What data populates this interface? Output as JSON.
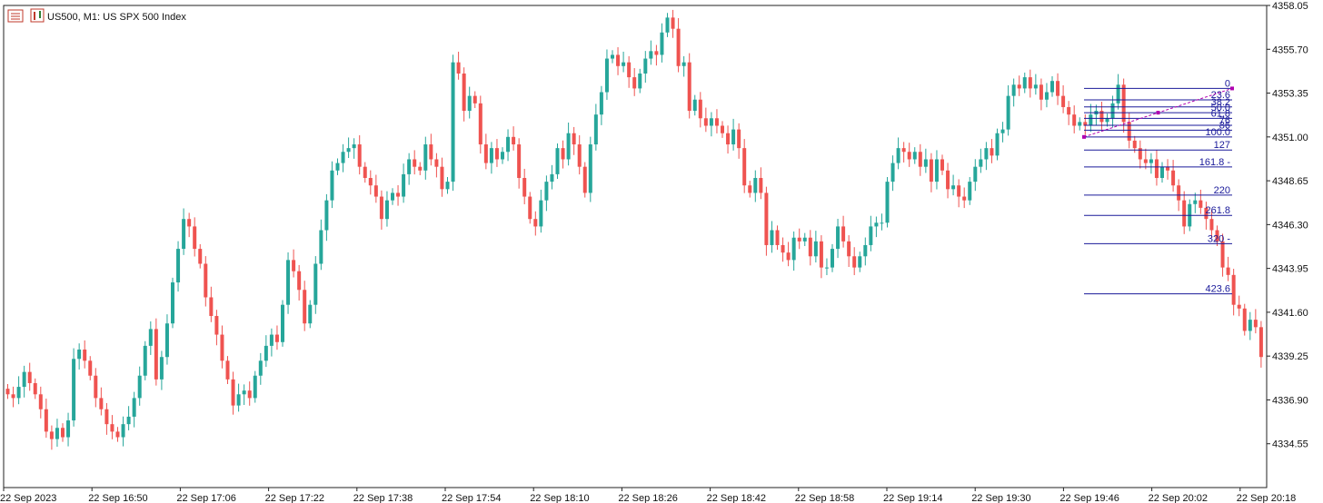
{
  "chart_data": {
    "type": "candlestick",
    "title": "US500, M1:  US SPX 500 Index",
    "symbol": "US500",
    "timeframe": "M1",
    "colors": {
      "bull": "#26a69a",
      "bear": "#ef5350",
      "fib": "#1a1a9a",
      "trendline": "#b000b0",
      "axis": "#222222"
    },
    "ylim": [
      4332.2,
      4358.05
    ],
    "y_ticks": [
      "4358.05",
      "4355.70",
      "4353.35",
      "4351.00",
      "4348.65",
      "4346.30",
      "4343.95",
      "4341.60",
      "4339.25",
      "4336.90",
      "4334.55"
    ],
    "x_ticks": [
      "22 Sep 2023",
      "22 Sep 16:50",
      "22 Sep 17:06",
      "22 Sep 17:22",
      "22 Sep 17:38",
      "22 Sep 17:54",
      "22 Sep 18:10",
      "22 Sep 18:26",
      "22 Sep 18:42",
      "22 Sep 18:58",
      "22 Sep 19:14",
      "22 Sep 19:30",
      "22 Sep 19:46",
      "22 Sep 20:02",
      "22 Sep 20:18"
    ],
    "closes": [
      4337.2,
      4337.0,
      4337.6,
      4338.4,
      4337.8,
      4337.2,
      4336.4,
      4335.2,
      4334.8,
      4335.4,
      4334.9,
      4335.8,
      4339.1,
      4339.6,
      4339.0,
      4338.2,
      4337.0,
      4336.4,
      4335.6,
      4335.2,
      4334.9,
      4335.6,
      4336.0,
      4337.0,
      4338.2,
      4339.8,
      4340.7,
      4338.0,
      4339.2,
      4341.0,
      4343.2,
      4345.0,
      4346.6,
      4346.2,
      4345.0,
      4344.2,
      4342.4,
      4341.4,
      4340.4,
      4339.0,
      4338.0,
      4336.6,
      4337.2,
      4337.4,
      4337.0,
      4338.2,
      4339.0,
      4339.8,
      4340.4,
      4340.0,
      4342.0,
      4344.4,
      4343.8,
      4342.8,
      4341.0,
      4342.0,
      4344.2,
      4346.0,
      4347.6,
      4349.2,
      4349.6,
      4350.2,
      4350.4,
      4350.6,
      4349.4,
      4348.8,
      4348.4,
      4347.8,
      4346.6,
      4347.6,
      4348.0,
      4347.8,
      4349.0,
      4349.8,
      4349.4,
      4349.2,
      4350.6,
      4349.8,
      4349.4,
      4348.2,
      4348.6,
      4355.0,
      4354.4,
      4352.4,
      4353.2,
      4352.8,
      4350.6,
      4349.6,
      4350.4,
      4349.8,
      4350.2,
      4351.0,
      4350.6,
      4348.8,
      4347.8,
      4346.6,
      4346.2,
      4347.6,
      4348.6,
      4349.0,
      4350.4,
      4349.8,
      4351.2,
      4350.6,
      4349.4,
      4348.0,
      4350.6,
      4352.2,
      4353.4,
      4355.2,
      4355.4,
      4354.8,
      4355.0,
      4354.2,
      4353.6,
      4354.4,
      4355.2,
      4355.6,
      4355.4,
      4356.6,
      4357.4,
      4356.8,
      4354.8,
      4355.0,
      4352.4,
      4353.0,
      4352.0,
      4351.6,
      4352.0,
      4351.6,
      4351.2,
      4350.6,
      4351.4,
      4350.4,
      4348.4,
      4348.0,
      4348.8,
      4348.0,
      4345.2,
      4346.0,
      4345.2,
      4344.8,
      4344.4,
      4345.6,
      4345.4,
      4345.6,
      4344.6,
      4345.4,
      4344.0,
      4344.0,
      4345.0,
      4346.2,
      4345.4,
      4344.6,
      4344.0,
      4344.6,
      4345.2,
      4346.2,
      4346.4,
      4346.4,
      4348.6,
      4349.6,
      4350.4,
      4350.2,
      4349.8,
      4350.2,
      4349.4,
      4349.8,
      4348.6,
      4349.8,
      4349.2,
      4348.2,
      4348.4,
      4347.8,
      4347.6,
      4348.6,
      4349.4,
      4349.8,
      4350.4,
      4350.0,
      4351.2,
      4351.4,
      4353.2,
      4353.8,
      4353.6,
      4354.2,
      4353.6,
      4353.8,
      4353.0,
      4353.4,
      4354.0,
      4353.2,
      4352.6,
      4352.2,
      4351.6,
      4351.8,
      4351.6,
      4352.2,
      4352.4,
      4351.8,
      4352.0,
      4352.8,
      4353.8,
      4351.8,
      4350.8,
      4350.4,
      4349.8,
      4349.6,
      4349.8,
      4348.8,
      4349.4,
      4349.2,
      4348.4,
      4347.6,
      4346.2,
      4347.4,
      4347.6,
      4347.2,
      4346.6,
      4346.0,
      4345.4,
      4344.0,
      4343.6,
      4342.0,
      4341.8,
      4340.6,
      4341.2,
      4340.8,
      4339.2
    ],
    "fibonacci": {
      "type": "fibonacci_retracement_expansion",
      "start_price": 4351.0,
      "end_price": 4353.6,
      "levels": [
        {
          "label": "0",
          "ratio": 0
        },
        {
          "label": "23.6",
          "ratio": 0.236
        },
        {
          "label": "38.2",
          "ratio": 0.382
        },
        {
          "label": "50.0",
          "ratio": 0.5
        },
        {
          "label": "61.8",
          "ratio": 0.618
        },
        {
          "label": "76",
          "ratio": 0.76
        },
        {
          "label": "86",
          "ratio": 0.86
        },
        {
          "label": "100.0",
          "ratio": 1.0
        },
        {
          "label": "127",
          "ratio": 1.27
        },
        {
          "label": "161.8 -",
          "ratio": 1.618
        },
        {
          "label": "220",
          "ratio": 2.2
        },
        {
          "label": "261.8",
          "ratio": 2.618
        },
        {
          "label": "320 -",
          "ratio": 3.2
        },
        {
          "label": "423.6",
          "ratio": 4.236
        }
      ]
    }
  }
}
